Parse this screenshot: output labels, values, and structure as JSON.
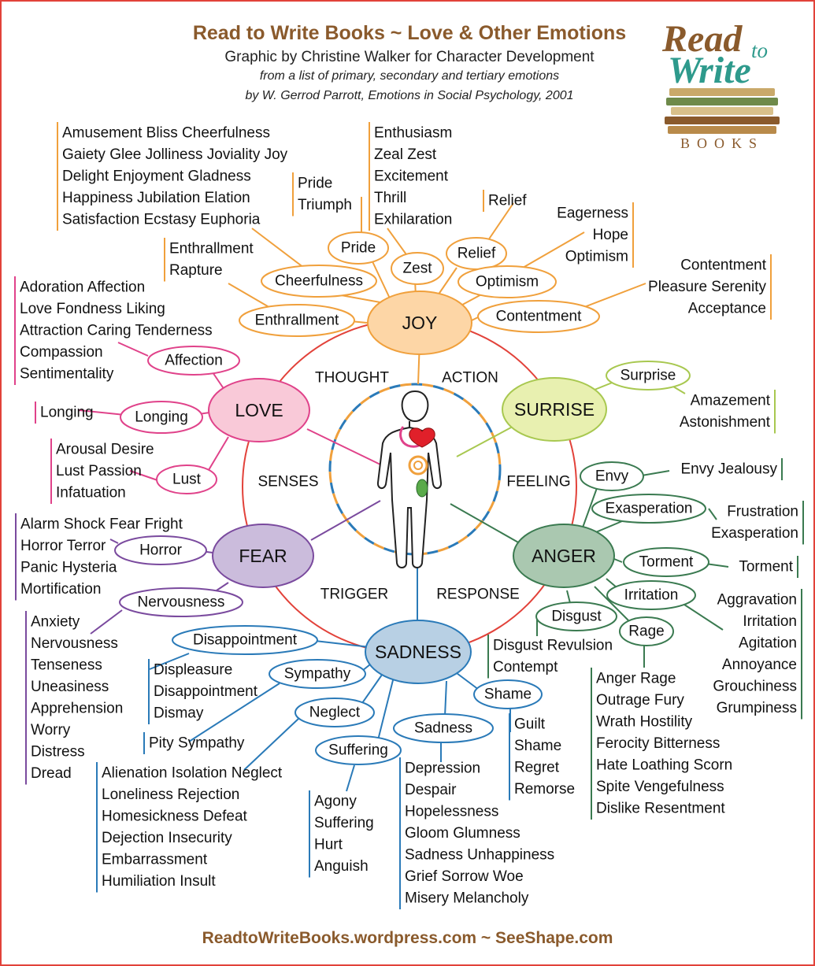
{
  "header": {
    "title": "Read to Write Books ~ Love & Other Emotions",
    "subtitle": "Graphic by Christine Walker for Character Development",
    "source_line1": "from a list of primary, secondary and tertiary emotions",
    "source_line2": "by W. Gerrod Parrott, Emotions in Social Psychology, 2001"
  },
  "logo": {
    "read": "Read",
    "to": "to",
    "write": "Write",
    "books": "BOOKS"
  },
  "footer": "ReadtoWriteBooks.wordpress.com ~ SeeShape.com",
  "colors": {
    "joy": "#f0a03c",
    "love": "#e0428a",
    "surprise": "#a8c850",
    "fear": "#7a4a9e",
    "anger": "#3a7a50",
    "sadness": "#2a7ab8",
    "ring": "#e2423a",
    "title": "#8a5a2c"
  },
  "quadrants": {
    "thought": "THOUGHT",
    "action": "ACTION",
    "senses": "SENSES",
    "feeling": "FEELING",
    "trigger": "TRIGGER",
    "response": "RESPONSE"
  },
  "primary": {
    "joy": "JOY",
    "love": "LOVE",
    "surprise": "SURRISE",
    "fear": "FEAR",
    "anger": "ANGER",
    "sadness": "SADNESS"
  },
  "joy": {
    "cheerfulness": "Cheerfulness",
    "pride": "Pride",
    "zest": "Zest",
    "relief": "Relief",
    "optimism": "Optimism",
    "contentment": "Contentment",
    "enthrallment": "Enthrallment",
    "cheerfulness_list": [
      "Amusement Bliss Cheerfulness",
      "Gaiety Glee Jolliness Joviality Joy",
      "Delight Enjoyment Gladness",
      "Happiness Jubilation Elation",
      "Satisfaction Ecstasy Euphoria"
    ],
    "pride_list": [
      "Pride",
      "Triumph"
    ],
    "zest_list": [
      "Enthusiasm",
      "Zeal Zest",
      "Excitement",
      "Thrill",
      "Exhilaration"
    ],
    "relief_list": [
      "Relief"
    ],
    "optimism_list": [
      "Eagerness",
      "Hope",
      "Optimism"
    ],
    "contentment_list": [
      "Contentment",
      "Pleasure Serenity",
      "Acceptance"
    ],
    "enthrallment_list": [
      "Enthrallment",
      "Rapture"
    ]
  },
  "love": {
    "affection": "Affection",
    "longing": "Longing",
    "lust": "Lust",
    "affection_list": [
      "Adoration Affection",
      "Love Fondness Liking",
      "Attraction Caring Tenderness",
      "Compassion",
      "Sentimentality"
    ],
    "longing_list": [
      "Longing"
    ],
    "lust_list": [
      "Arousal Desire",
      "Lust Passion",
      "Infatuation"
    ]
  },
  "surprise": {
    "surprise": "Surprise",
    "surprise_list": [
      "Amazement",
      "Astonishment"
    ]
  },
  "fear": {
    "horror": "Horror",
    "nervousness": "Nervousness",
    "horror_list": [
      "Alarm Shock Fear Fright",
      "Horror Terror",
      "Panic Hysteria",
      "Mortification"
    ],
    "nervousness_list": [
      "Anxiety",
      "Nervousness",
      "Tenseness",
      "Uneasiness",
      "Apprehension",
      "Worry",
      "Distress",
      "Dread"
    ]
  },
  "anger": {
    "envy": "Envy",
    "exasperation": "Exasperation",
    "torment": "Torment",
    "irritation": "Irritation",
    "disgust": "Disgust",
    "rage": "Rage",
    "envy_list": [
      "Envy Jealousy"
    ],
    "exasperation_list": [
      "Frustration",
      "Exasperation"
    ],
    "torment_list": [
      "Torment"
    ],
    "irritation_list": [
      "Aggravation",
      "Irritation",
      "Agitation",
      "Annoyance",
      "Grouchiness",
      "Grumpiness"
    ],
    "disgust_list": [
      "Disgust Revulsion",
      "Contempt"
    ],
    "rage_list": [
      "Anger Rage",
      "Outrage Fury",
      "Wrath Hostility",
      "Ferocity Bitterness",
      "Hate Loathing Scorn",
      "Spite Vengefulness",
      "Dislike Resentment"
    ]
  },
  "sadness": {
    "disappointment": "Disappointment",
    "sympathy": "Sympathy",
    "neglect": "Neglect",
    "suffering": "Suffering",
    "sadness": "Sadness",
    "shame": "Shame",
    "disappointment_list": [
      "Displeasure",
      "Disappointment",
      "Dismay"
    ],
    "sympathy_list": [
      "Pity Sympathy"
    ],
    "neglect_list": [
      "Alienation Isolation Neglect",
      "Loneliness Rejection",
      "Homesickness Defeat",
      "Dejection Insecurity",
      "Embarrassment",
      "Humiliation Insult"
    ],
    "suffering_list": [
      "Agony",
      "Suffering",
      "Hurt",
      "Anguish"
    ],
    "sadness_list": [
      "Depression",
      "Despair",
      "Hopelessness",
      "Gloom Glumness",
      "Sadness Unhappiness",
      "Grief Sorrow Woe",
      "Misery Melancholy"
    ],
    "shame_list": [
      "Guilt",
      "Shame",
      "Regret",
      "Remorse"
    ]
  }
}
